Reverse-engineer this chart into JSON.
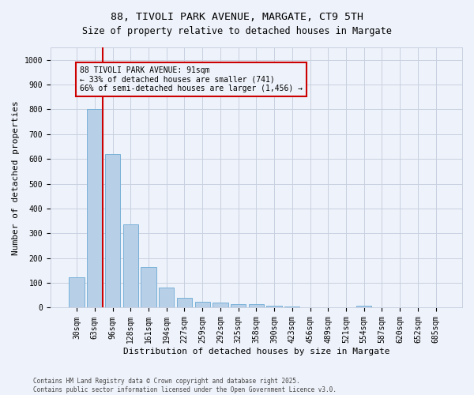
{
  "title": "88, TIVOLI PARK AVENUE, MARGATE, CT9 5TH",
  "subtitle": "Size of property relative to detached houses in Margate",
  "xlabel": "Distribution of detached houses by size in Margate",
  "ylabel": "Number of detached properties",
  "footer_line1": "Contains HM Land Registry data © Crown copyright and database right 2025.",
  "footer_line2": "Contains public sector information licensed under the Open Government Licence v3.0.",
  "categories": [
    "30sqm",
    "63sqm",
    "96sqm",
    "128sqm",
    "161sqm",
    "194sqm",
    "227sqm",
    "259sqm",
    "292sqm",
    "325sqm",
    "358sqm",
    "390sqm",
    "423sqm",
    "456sqm",
    "489sqm",
    "521sqm",
    "554sqm",
    "587sqm",
    "620sqm",
    "652sqm",
    "685sqm"
  ],
  "values": [
    122,
    800,
    620,
    335,
    165,
    82,
    40,
    25,
    22,
    15,
    15,
    8,
    5,
    0,
    0,
    0,
    8,
    0,
    0,
    0,
    0
  ],
  "bar_color": "#b8cfe8",
  "bar_edge_color": "#6aaad4",
  "ylim": [
    0,
    1050
  ],
  "yticks": [
    0,
    100,
    200,
    300,
    400,
    500,
    600,
    700,
    800,
    900,
    1000
  ],
  "vline_color": "#cc0000",
  "vline_xindex": 2,
  "annotation_text": "88 TIVOLI PARK AVENUE: 91sqm\n← 33% of detached houses are smaller (741)\n66% of semi-detached houses are larger (1,456) →",
  "annotation_box_color": "#cc0000",
  "bg_color": "#eef2fa",
  "grid_color": "#c8d0e0",
  "title_fontsize": 9.5,
  "subtitle_fontsize": 8.5,
  "xlabel_fontsize": 8,
  "ylabel_fontsize": 8,
  "tick_fontsize": 7,
  "annotation_fontsize": 7,
  "footer_fontsize": 5.5
}
